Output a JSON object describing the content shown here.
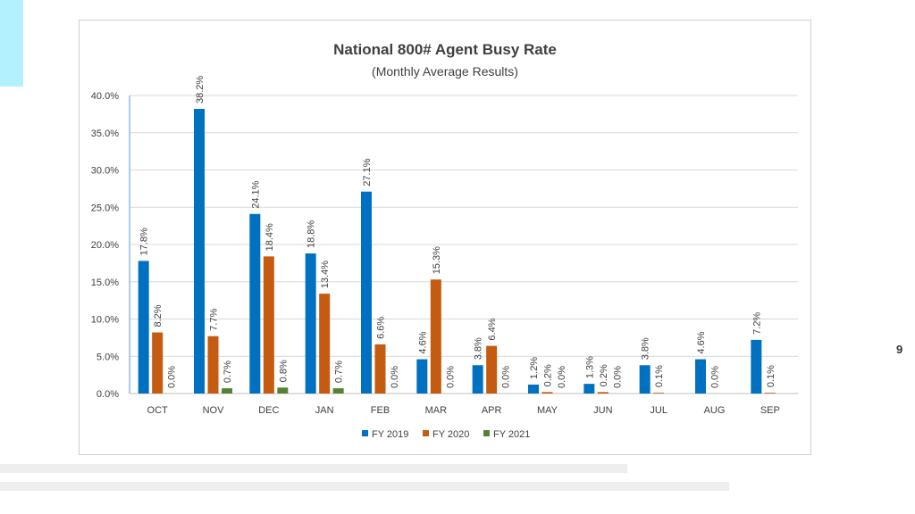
{
  "page": {
    "number": "9"
  },
  "colors": {
    "accent": "#b3f1ff",
    "fy2019": "#0070c0",
    "fy2020": "#c55a11",
    "fy2021": "#548235"
  },
  "chart_data": {
    "type": "bar",
    "title": "National 800# Agent Busy Rate",
    "subtitle": "(Monthly Average Results)",
    "xlabel": "",
    "ylabel": "",
    "ylim": [
      0,
      40
    ],
    "ytick_step": 5,
    "yticks": [
      "0.0%",
      "5.0%",
      "10.0%",
      "15.0%",
      "20.0%",
      "25.0%",
      "30.0%",
      "35.0%",
      "40.0%"
    ],
    "grid": true,
    "legend": "bottom",
    "categories": [
      "OCT",
      "NOV",
      "DEC",
      "JAN",
      "FEB",
      "MAR",
      "APR",
      "MAY",
      "JUN",
      "JUL",
      "AUG",
      "SEP"
    ],
    "series": [
      {
        "name": "FY 2019",
        "color": "#0070c0",
        "values": [
          17.8,
          38.2,
          24.1,
          18.8,
          27.1,
          4.6,
          3.8,
          1.2,
          1.3,
          3.8,
          4.6,
          7.2
        ],
        "labels": [
          "17.8%",
          "38.2%",
          "24.1%",
          "18.8%",
          "27.1%",
          "4.6%",
          "3.8%",
          "1.2%",
          "1.3%",
          "3.8%",
          "4.6%",
          "7.2%"
        ]
      },
      {
        "name": "FY 2020",
        "color": "#c55a11",
        "values": [
          8.2,
          7.7,
          18.4,
          13.4,
          6.6,
          15.3,
          6.4,
          0.2,
          0.2,
          0.1,
          0.0,
          0.1
        ],
        "labels": [
          "8.2%",
          "7.7%",
          "18.4%",
          "13.4%",
          "6.6%",
          "15.3%",
          "6.4%",
          "0.2%",
          "0.2%",
          "0.1%",
          "0.0%",
          "0.1%"
        ]
      },
      {
        "name": "FY 2021",
        "color": "#548235",
        "values": [
          0.0,
          0.7,
          0.8,
          0.7,
          0.0,
          0.0,
          0.0,
          0.0,
          0.0,
          null,
          null,
          null
        ],
        "labels": [
          "0.0%",
          "0.7%",
          "0.8%",
          "0.7%",
          "0.0%",
          "0.0%",
          "0.0%",
          "0.0%",
          "0.0%",
          null,
          null,
          null
        ]
      }
    ]
  }
}
